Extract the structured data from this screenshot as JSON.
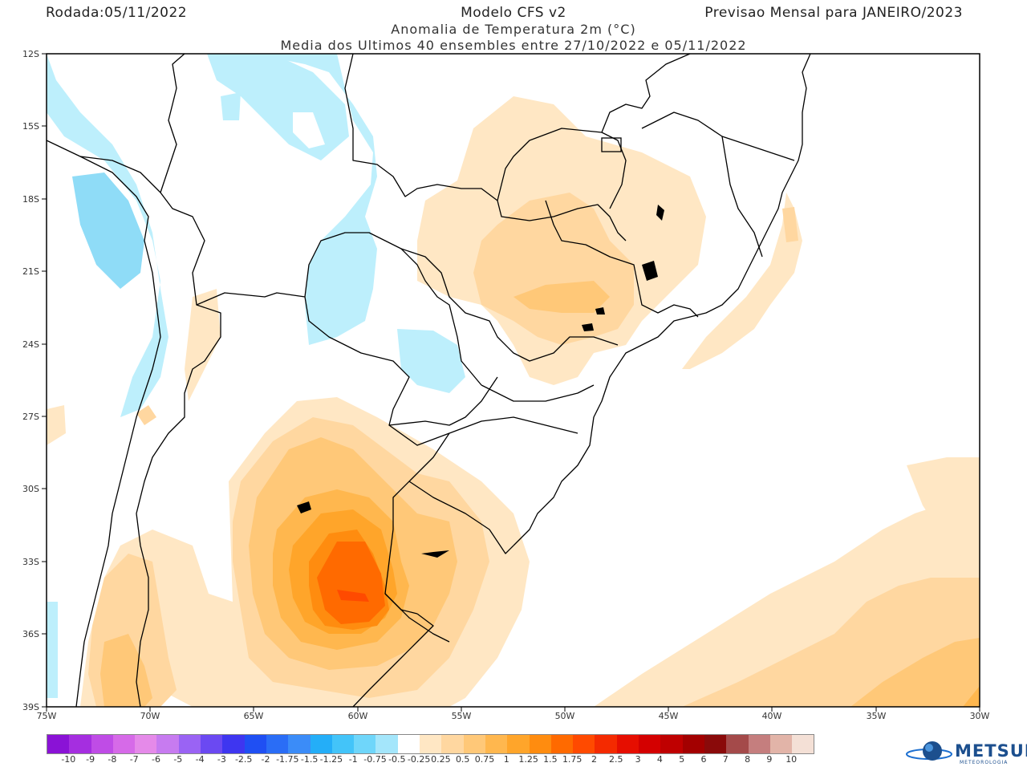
{
  "header": {
    "run_label": "Rodada:05/11/2022",
    "model": "Modelo CFS v2",
    "forecast": "Previsao Mensal para JANEIRO/2023",
    "subtitle1": "Anomalia de Temperatura 2m (°C)",
    "subtitle2": "Media dos Ultimos 40 ensembles entre 27/10/2022 e 05/11/2022"
  },
  "axes": {
    "lat_ticks": [
      "12S",
      "15S",
      "18S",
      "21S",
      "24S",
      "27S",
      "30S",
      "33S",
      "36S",
      "39S"
    ],
    "lon_ticks": [
      "75W",
      "70W",
      "65W",
      "60W",
      "55W",
      "50W",
      "45W",
      "40W",
      "35W",
      "30W"
    ]
  },
  "colorbar": {
    "labels": [
      "-10",
      "-9",
      "-8",
      "-7",
      "-6",
      "-5",
      "-4",
      "-3",
      "-2.5",
      "-2",
      "-1.75",
      "-1.5",
      "-1.25",
      "-1",
      "-0.75",
      "-0.5",
      "-0.25",
      "0.25",
      "0.5",
      "0.75",
      "1",
      "1.25",
      "1.5",
      "1.75",
      "2",
      "2.5",
      "3",
      "4",
      "5",
      "6",
      "7",
      "8",
      "9",
      "10"
    ],
    "colors": [
      "#8a12d6",
      "#a52ee0",
      "#bf4ce6",
      "#d66ae8",
      "#e58ae9",
      "#c77bf0",
      "#9a63f4",
      "#6b49f2",
      "#3e36f0",
      "#1f4ff3",
      "#2a6df6",
      "#3b8cf8",
      "#24aef8",
      "#43c4f9",
      "#6fd6fa",
      "#a4e6fb",
      "#ffffff",
      "#ffe7c4",
      "#ffd7a0",
      "#ffc878",
      "#ffb74e",
      "#ffa52a",
      "#ff8c0f",
      "#ff6a00",
      "#ff4a00",
      "#f42a00",
      "#e60e00",
      "#d40000",
      "#bf0000",
      "#a30000",
      "#8a0a0a",
      "#a44a4a",
      "#c57e7e",
      "#e2b4a8",
      "#f4e0d6"
    ]
  },
  "logo": {
    "name": "METSUL",
    "tagline": "METEOROLOGIA"
  }
}
